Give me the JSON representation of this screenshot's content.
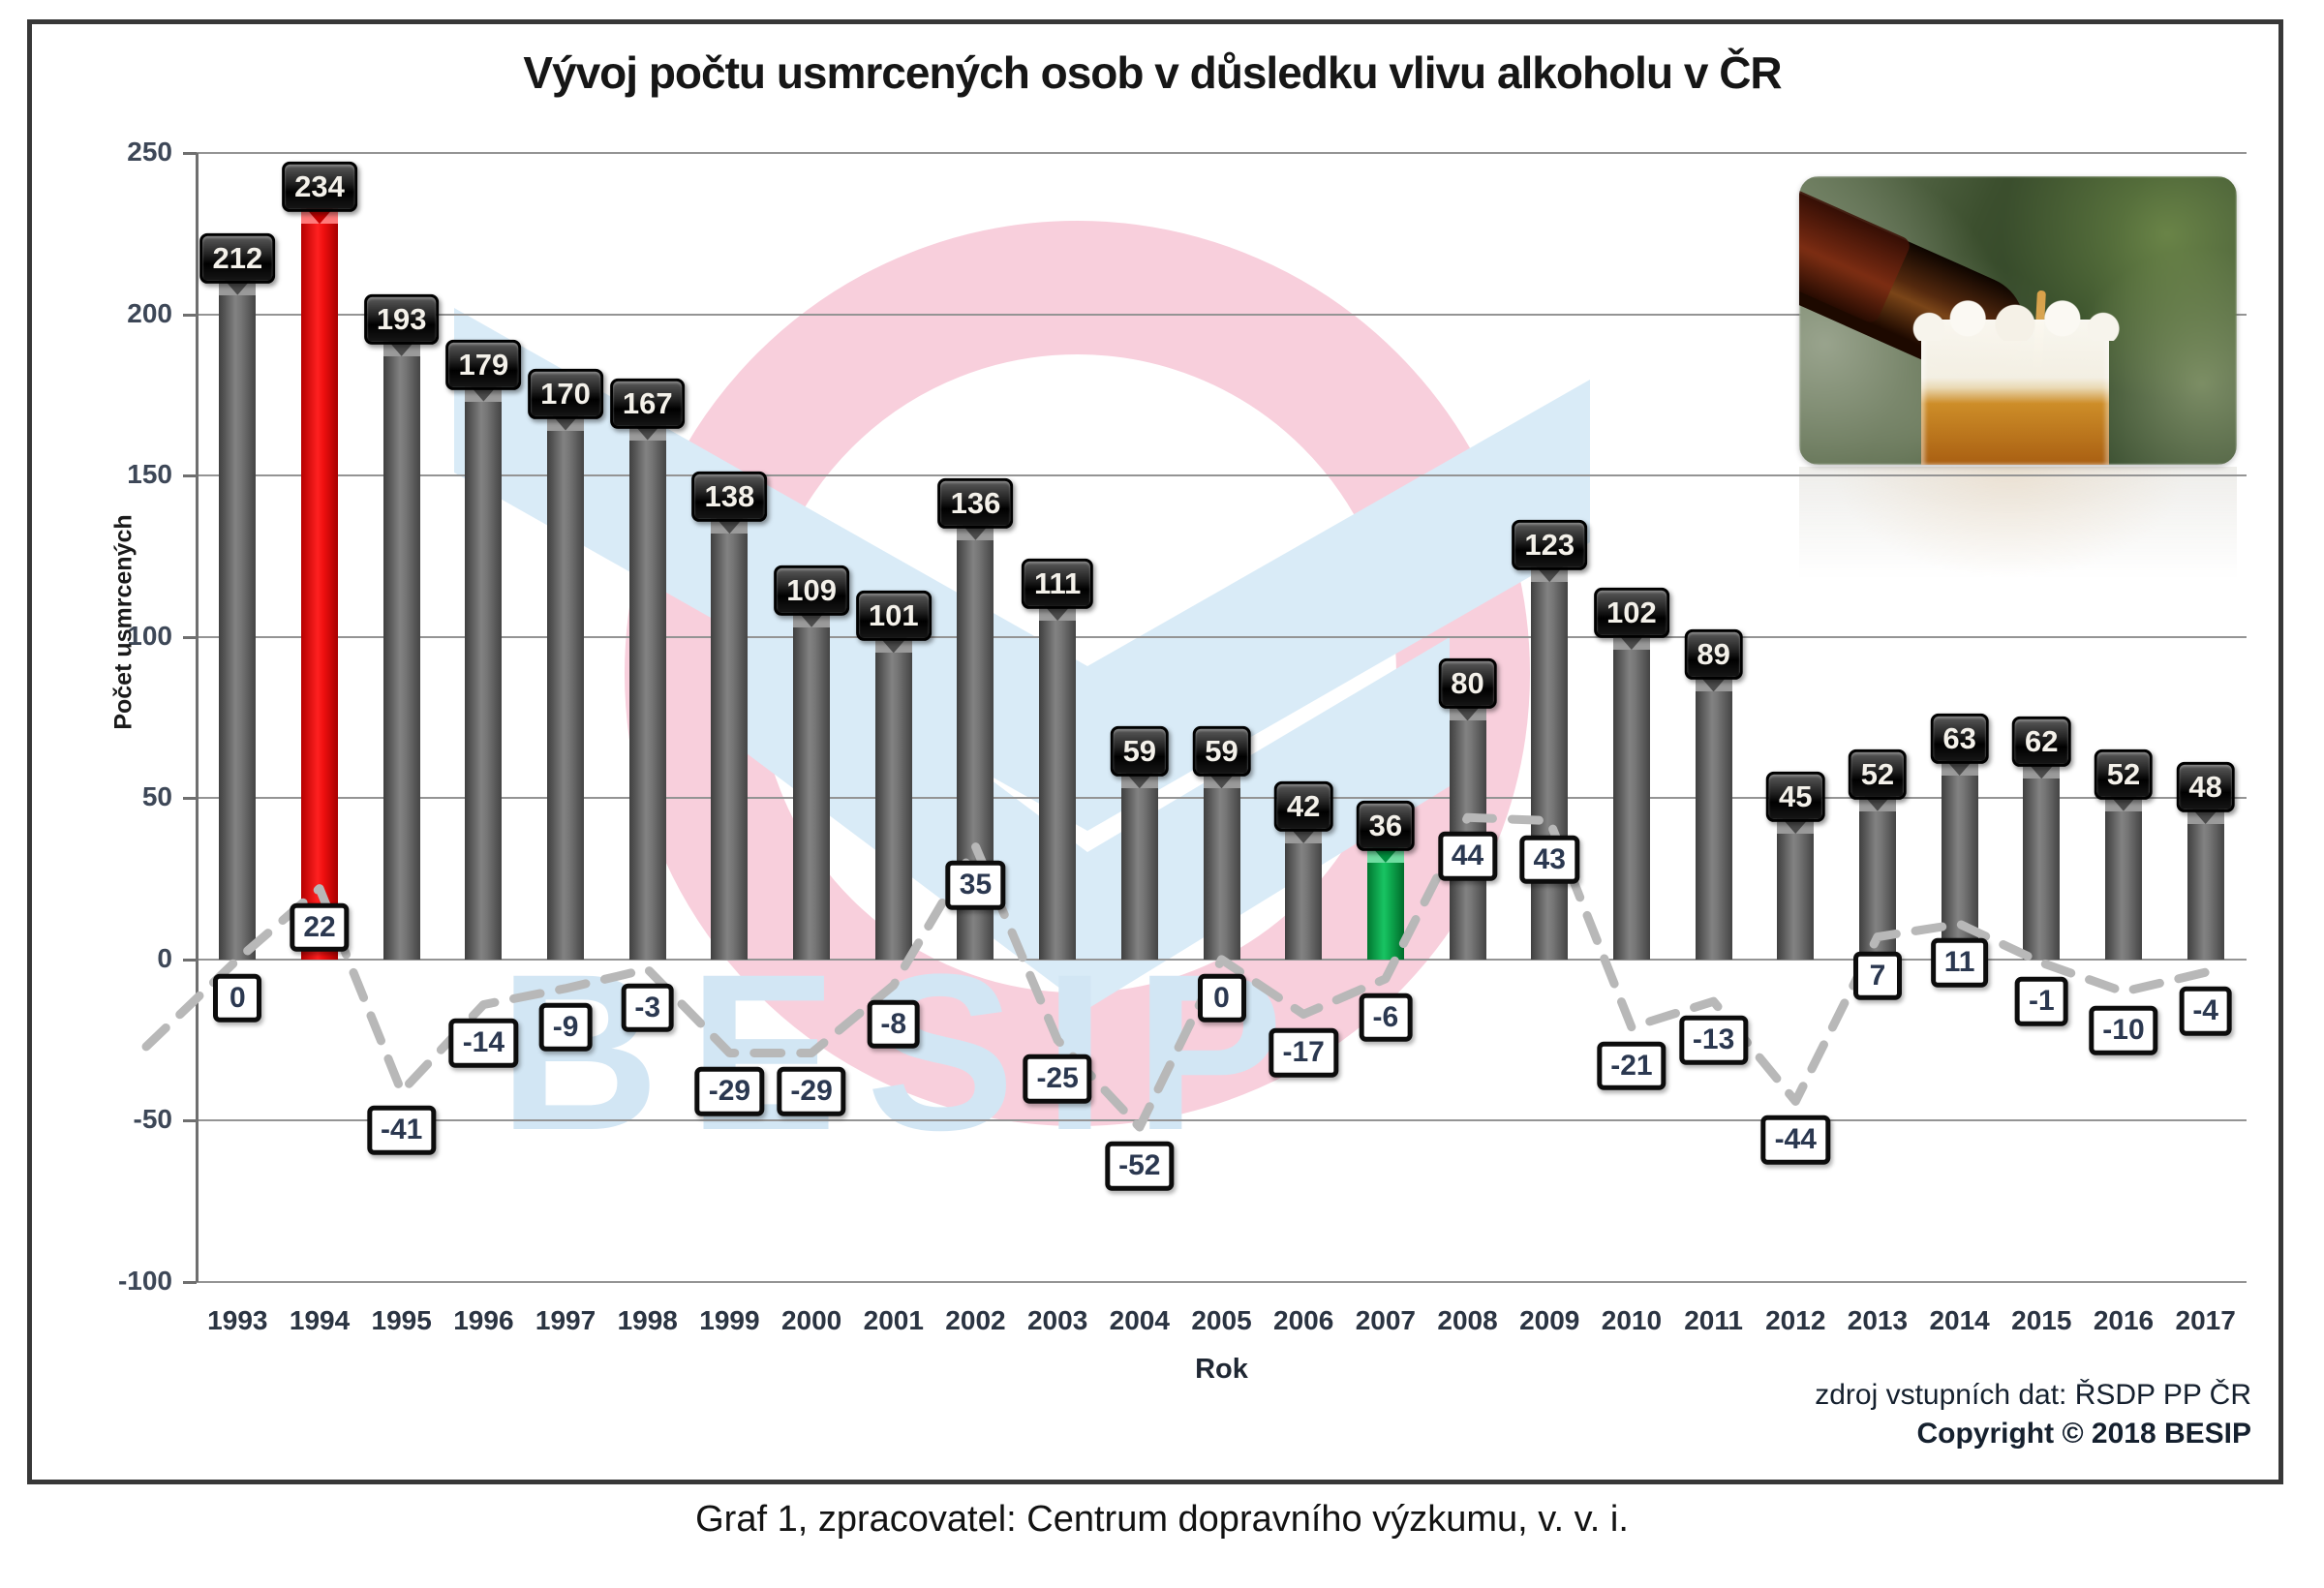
{
  "page": {
    "caption": "Graf 1, zpracovatel: Centrum dopravního výzkumu, v. v. i."
  },
  "header": {
    "title": "Vývoj počtu usmrcených osob v důsledku vlivu alkoholu v ČR"
  },
  "footer": {
    "source_note": "zdroj vstupních dat: ŘSDP PP ČR",
    "copyright_note": "Copyright © 2018 BESIP"
  },
  "watermark": {
    "text": "BESIP"
  },
  "images": {
    "beer_photo": "beer-pour-photo"
  },
  "chart_data": {
    "type": "bar",
    "title": "Vývoj počtu usmrcených osob v důsledku vlivu alkoholu v ČR",
    "xlabel": "Rok",
    "ylabel": "Počet usmrcených",
    "ylim": [
      -100,
      250
    ],
    "yticks": [
      250,
      200,
      150,
      100,
      50,
      0,
      -50,
      -100
    ],
    "grid": true,
    "legend_position": "none",
    "categories": [
      "1993",
      "1994",
      "1995",
      "1996",
      "1997",
      "1998",
      "1999",
      "2000",
      "2001",
      "2002",
      "2003",
      "2004",
      "2005",
      "2006",
      "2007",
      "2008",
      "2009",
      "2010",
      "2011",
      "2012",
      "2013",
      "2014",
      "2015",
      "2016",
      "2017"
    ],
    "series": [
      {
        "name": "Počet usmrcených osob",
        "type": "bar",
        "values": [
          212,
          234,
          193,
          179,
          170,
          167,
          138,
          109,
          101,
          136,
          111,
          59,
          59,
          42,
          36,
          80,
          123,
          102,
          89,
          45,
          52,
          63,
          62,
          52,
          48
        ]
      },
      {
        "name": "Meziroční rozdíl",
        "type": "line",
        "style": "dashed",
        "values": [
          0,
          22,
          -41,
          -14,
          -9,
          -3,
          -29,
          -29,
          -8,
          35,
          -25,
          -52,
          0,
          -17,
          -6,
          44,
          43,
          -21,
          -13,
          -44,
          7,
          11,
          -1,
          -10,
          -4
        ]
      }
    ],
    "colors": {
      "bar_default": "#4f4f4f",
      "bar_overrides": {
        "1994": "#e60000",
        "2007": "#00a651"
      },
      "line": "#b8b8b8",
      "grid": "#949494",
      "watermark_pink": "#f8cfdc",
      "watermark_blue": "#d9ebf7"
    }
  }
}
